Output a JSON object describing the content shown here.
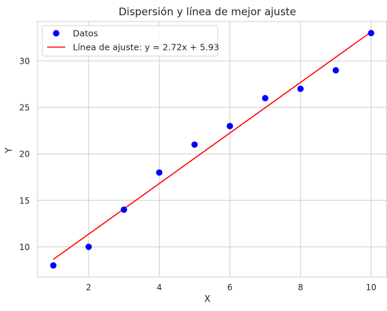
{
  "chart_data": {
    "type": "scatter",
    "title": "Dispersión y línea de mejor ajuste",
    "xlabel": "X",
    "ylabel": "Y",
    "xlim": [
      0.55,
      10.45
    ],
    "ylim": [
      6.75,
      34.25
    ],
    "xticks": [
      2,
      4,
      6,
      8,
      10
    ],
    "yticks": [
      10,
      15,
      20,
      25,
      30
    ],
    "grid": true,
    "legend_position": "top-left",
    "series": [
      {
        "name": "Datos",
        "kind": "scatter",
        "color": "#0000ff",
        "x": [
          1,
          2,
          3,
          4,
          5,
          6,
          7,
          8,
          9,
          10
        ],
        "y": [
          8,
          10,
          14,
          18,
          21,
          23,
          26,
          27,
          29,
          33
        ]
      },
      {
        "name": "Línea de ajuste: y = 2.72x + 5.93",
        "kind": "line",
        "color": "#ff0000",
        "slope": 2.72,
        "intercept": 5.93,
        "x_range": [
          1,
          10
        ]
      }
    ]
  }
}
